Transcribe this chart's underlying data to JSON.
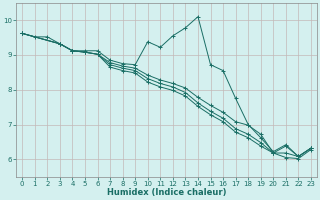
{
  "xlabel": "Humidex (Indice chaleur)",
  "xlim": [
    -0.5,
    23.5
  ],
  "ylim": [
    5.5,
    10.5
  ],
  "yticks": [
    6,
    7,
    8,
    9,
    10
  ],
  "xticks": [
    0,
    1,
    2,
    3,
    4,
    5,
    6,
    7,
    8,
    9,
    10,
    11,
    12,
    13,
    14,
    15,
    16,
    17,
    18,
    19,
    20,
    21,
    22,
    23
  ],
  "bg_color": "#d4f0ef",
  "plot_bg": "#d4f0ef",
  "line_color": "#1a6e65",
  "grid_color_v": "#c4b8b8",
  "grid_color_h": "#c4b8b8",
  "lines": [
    {
      "x": [
        0,
        1,
        2,
        3,
        4,
        5,
        6,
        7,
        8,
        9,
        10,
        11,
        12,
        13,
        14,
        15,
        16,
        17,
        18,
        19,
        20,
        21,
        22,
        23
      ],
      "y": [
        9.62,
        9.52,
        9.52,
        9.32,
        9.12,
        9.12,
        9.12,
        8.85,
        8.75,
        8.72,
        9.38,
        9.22,
        9.55,
        9.78,
        10.1,
        8.72,
        8.55,
        7.75,
        7.0,
        6.62,
        6.22,
        6.42,
        6.08,
        6.32
      ]
    },
    {
      "x": [
        0,
        3,
        4,
        5,
        6,
        7,
        8,
        9,
        10,
        11,
        12,
        13,
        14,
        15,
        16,
        17,
        18,
        19,
        20,
        21,
        22,
        23
      ],
      "y": [
        9.62,
        9.32,
        9.12,
        9.08,
        9.02,
        8.78,
        8.68,
        8.62,
        8.42,
        8.28,
        8.18,
        8.05,
        7.78,
        7.55,
        7.35,
        7.08,
        6.98,
        6.72,
        6.18,
        6.38,
        6.08,
        6.32
      ]
    },
    {
      "x": [
        0,
        3,
        4,
        5,
        6,
        7,
        8,
        9,
        10,
        11,
        12,
        13,
        14,
        15,
        16,
        17,
        18,
        19,
        20,
        21,
        22,
        23
      ],
      "y": [
        9.62,
        9.32,
        9.12,
        9.08,
        9.02,
        8.72,
        8.62,
        8.55,
        8.32,
        8.18,
        8.08,
        7.92,
        7.62,
        7.38,
        7.18,
        6.88,
        6.72,
        6.48,
        6.18,
        6.18,
        6.08,
        6.32
      ]
    },
    {
      "x": [
        0,
        3,
        4,
        5,
        6,
        7,
        8,
        9,
        10,
        11,
        12,
        13,
        14,
        15,
        16,
        17,
        18,
        19,
        20,
        21,
        22,
        23
      ],
      "y": [
        9.62,
        9.32,
        9.12,
        9.08,
        9.02,
        8.65,
        8.55,
        8.48,
        8.22,
        8.08,
        7.98,
        7.82,
        7.52,
        7.28,
        7.08,
        6.78,
        6.62,
        6.38,
        6.18,
        6.05,
        6.02,
        6.28
      ]
    }
  ]
}
